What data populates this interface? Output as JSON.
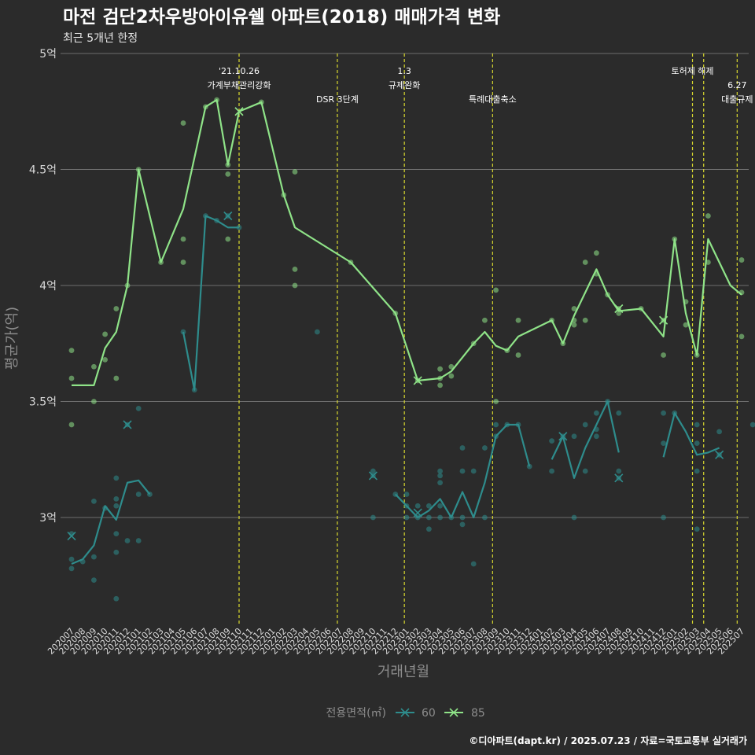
{
  "chart_data": {
    "type": "line",
    "title": "마전 검단2차우방아이유쉘 아파트(2018) 매매가격 변화",
    "subtitle": "최근 5개년 한정",
    "xlabel": "거래년월",
    "ylabel": "평균가(억)",
    "caption": "©디아파트(dapt.kr) / 2025.07.23 / 자료=국토교통부 실거래가",
    "legend": {
      "title": "전용면적(㎡)",
      "position": "bottom"
    },
    "ylim": [
      2.55,
      5.0
    ],
    "y_ticks": [
      {
        "value": 3.0,
        "label": "3억"
      },
      {
        "value": 3.5,
        "label": "3.5억"
      },
      {
        "value": 4.0,
        "label": "4억"
      },
      {
        "value": 4.5,
        "label": "4.5억"
      },
      {
        "value": 5.0,
        "label": "5억"
      }
    ],
    "months": [
      "202007",
      "202008",
      "202009",
      "202010",
      "202011",
      "202012",
      "202101",
      "202102",
      "202103",
      "202104",
      "202105",
      "202106",
      "202107",
      "202108",
      "202109",
      "202110",
      "202111",
      "202112",
      "202201",
      "202202",
      "202203",
      "202204",
      "202205",
      "202206",
      "202207",
      "202208",
      "202209",
      "202210",
      "202211",
      "202212",
      "202301",
      "202302",
      "202303",
      "202304",
      "202305",
      "202306",
      "202307",
      "202308",
      "202309",
      "202310",
      "202311",
      "202312",
      "202401",
      "202402",
      "202403",
      "202404",
      "202405",
      "202406",
      "202407",
      "202408",
      "202409",
      "202410",
      "202411",
      "202412",
      "202501",
      "202502",
      "202503",
      "202504",
      "202505",
      "202506",
      "202507"
    ],
    "events": [
      {
        "month_index": 15.0,
        "lines": [
          "'21.10.26",
          "가계부채관리강화"
        ]
      },
      {
        "month_index": 23.8,
        "lines": [
          "",
          "",
          "DSR 3단계"
        ]
      },
      {
        "month_index": 29.8,
        "lines": [
          "1.3",
          "규제완화"
        ]
      },
      {
        "month_index": 37.7,
        "lines": [
          "",
          "",
          "특례대출축소"
        ]
      },
      {
        "month_index": 55.6,
        "lines": [
          "토허제 해제"
        ]
      },
      {
        "month_index": 56.6,
        "lines": []
      },
      {
        "month_index": 59.6,
        "lines": [
          "",
          "6.27",
          "대출규제"
        ]
      }
    ],
    "series": [
      {
        "name": "60",
        "color": "#2e8c8c",
        "line": [
          [
            0,
            2.8
          ],
          [
            1,
            2.82
          ],
          [
            2,
            2.88
          ],
          [
            3,
            3.05
          ],
          [
            4,
            2.99
          ],
          [
            5,
            3.15
          ],
          [
            6,
            3.16
          ],
          [
            7,
            3.1
          ],
          null,
          [
            10,
            3.8
          ],
          [
            11,
            3.55
          ],
          [
            12,
            4.3
          ],
          [
            13,
            4.28
          ],
          [
            14,
            4.25
          ],
          [
            15,
            4.25
          ],
          null,
          [
            29,
            3.1
          ],
          [
            30,
            3.05
          ],
          [
            31,
            3.0
          ],
          [
            32,
            3.03
          ],
          [
            33,
            3.08
          ],
          [
            34,
            3.0
          ],
          [
            35,
            3.11
          ],
          [
            36,
            3.0
          ],
          [
            37,
            3.15
          ],
          [
            38,
            3.35
          ],
          [
            39,
            3.4
          ],
          [
            40,
            3.4
          ],
          [
            41,
            3.22
          ],
          null,
          [
            43,
            3.25
          ],
          [
            44,
            3.35
          ],
          [
            45,
            3.17
          ],
          [
            46,
            3.3
          ],
          [
            47,
            3.4
          ],
          [
            48,
            3.5
          ],
          [
            49,
            3.28
          ],
          null,
          [
            53,
            3.26
          ],
          [
            54,
            3.45
          ],
          [
            55,
            3.37
          ],
          [
            56,
            3.27
          ],
          [
            57,
            3.28
          ],
          [
            58,
            3.3
          ]
        ],
        "points": [
          [
            0,
            2.78
          ],
          [
            0,
            2.82
          ],
          [
            0,
            2.93
          ],
          [
            1,
            2.81
          ],
          [
            2,
            2.73
          ],
          [
            2,
            2.83
          ],
          [
            2,
            3.07
          ],
          [
            3,
            3.04
          ],
          [
            4,
            2.65
          ],
          [
            4,
            2.85
          ],
          [
            4,
            2.93
          ],
          [
            4,
            3.05
          ],
          [
            4,
            3.08
          ],
          [
            4,
            3.17
          ],
          [
            5,
            2.9
          ],
          [
            5,
            3.4
          ],
          [
            6,
            2.9
          ],
          [
            6,
            3.1
          ],
          [
            6,
            3.47
          ],
          [
            7,
            3.1
          ],
          [
            10,
            3.8
          ],
          [
            11,
            3.55
          ],
          [
            12,
            4.3
          ],
          [
            13,
            4.28
          ],
          [
            14,
            4.3
          ],
          [
            15,
            4.25
          ],
          [
            22,
            3.8
          ],
          [
            27,
            3.0
          ],
          [
            27,
            3.18
          ],
          [
            27,
            3.2
          ],
          [
            29,
            3.1
          ],
          [
            30,
            3.0
          ],
          [
            30,
            3.05
          ],
          [
            30,
            3.1
          ],
          [
            31,
            3.0
          ],
          [
            31,
            3.05
          ],
          [
            32,
            2.95
          ],
          [
            32,
            3.0
          ],
          [
            32,
            3.05
          ],
          [
            33,
            3.0
          ],
          [
            33,
            3.05
          ],
          [
            33,
            3.15
          ],
          [
            33,
            3.18
          ],
          [
            33,
            3.2
          ],
          [
            34,
            3.0
          ],
          [
            35,
            2.97
          ],
          [
            35,
            3.0
          ],
          [
            35,
            3.2
          ],
          [
            35,
            3.3
          ],
          [
            36,
            2.8
          ],
          [
            36,
            3.2
          ],
          [
            37,
            3.0
          ],
          [
            37,
            3.3
          ],
          [
            38,
            3.35
          ],
          [
            38,
            3.4
          ],
          [
            39,
            3.4
          ],
          [
            40,
            3.4
          ],
          [
            41,
            3.22
          ],
          [
            43,
            3.2
          ],
          [
            43,
            3.33
          ],
          [
            44,
            3.35
          ],
          [
            45,
            3.0
          ],
          [
            45,
            3.35
          ],
          [
            46,
            3.2
          ],
          [
            46,
            3.4
          ],
          [
            47,
            3.35
          ],
          [
            47,
            3.38
          ],
          [
            47,
            3.45
          ],
          [
            48,
            3.5
          ],
          [
            49,
            3.17
          ],
          [
            49,
            3.2
          ],
          [
            49,
            3.45
          ],
          [
            53,
            3.0
          ],
          [
            53,
            3.32
          ],
          [
            53,
            3.45
          ],
          [
            54,
            3.45
          ],
          [
            56,
            2.95
          ],
          [
            56,
            3.2
          ],
          [
            56,
            3.32
          ],
          [
            56,
            3.4
          ],
          [
            58,
            3.27
          ],
          [
            58,
            3.37
          ],
          [
            61,
            3.4
          ]
        ],
        "markers": [
          [
            0,
            2.92
          ],
          [
            5,
            3.4
          ],
          [
            14,
            4.3
          ],
          [
            27,
            3.18
          ],
          [
            31,
            3.02
          ],
          [
            44,
            3.35
          ],
          [
            49,
            3.17
          ],
          [
            58,
            3.27
          ]
        ]
      },
      {
        "name": "85",
        "color": "#8fe388",
        "line": [
          [
            0,
            3.57
          ],
          [
            1,
            3.57
          ],
          [
            2,
            3.57
          ],
          [
            3,
            3.73
          ],
          [
            4,
            3.8
          ],
          [
            5,
            4.0
          ],
          [
            6,
            4.5
          ],
          [
            8,
            4.1
          ],
          [
            10,
            4.33
          ],
          [
            12,
            4.77
          ],
          [
            13,
            4.8
          ],
          [
            14,
            4.52
          ],
          [
            15,
            4.75
          ],
          [
            17,
            4.79
          ],
          [
            19,
            4.39
          ],
          [
            20,
            4.25
          ],
          [
            25,
            4.1
          ],
          [
            29,
            3.88
          ],
          [
            31,
            3.59
          ],
          [
            33,
            3.6
          ],
          [
            34,
            3.63
          ],
          [
            36,
            3.75
          ],
          [
            37,
            3.8
          ],
          [
            38,
            3.74
          ],
          [
            39,
            3.72
          ],
          [
            40,
            3.78
          ],
          [
            43,
            3.85
          ],
          [
            44,
            3.75
          ],
          [
            45,
            3.87
          ],
          [
            47,
            4.07
          ],
          [
            48,
            3.96
          ],
          [
            49,
            3.89
          ],
          [
            51,
            3.9
          ],
          [
            53,
            3.78
          ],
          [
            54,
            4.2
          ],
          [
            55,
            3.88
          ],
          [
            56,
            3.7
          ],
          [
            57,
            4.2
          ],
          [
            58,
            4.1
          ],
          [
            59,
            4.0
          ],
          [
            60,
            3.96
          ]
        ],
        "points": [
          [
            0,
            3.4
          ],
          [
            0,
            3.6
          ],
          [
            0,
            3.72
          ],
          [
            2,
            3.5
          ],
          [
            2,
            3.65
          ],
          [
            3,
            3.68
          ],
          [
            3,
            3.79
          ],
          [
            4,
            3.6
          ],
          [
            4,
            3.9
          ],
          [
            5,
            4.0
          ],
          [
            6,
            4.5
          ],
          [
            8,
            4.1
          ],
          [
            10,
            4.1
          ],
          [
            10,
            4.2
          ],
          [
            10,
            4.7
          ],
          [
            12,
            4.77
          ],
          [
            13,
            4.8
          ],
          [
            14,
            4.2
          ],
          [
            14,
            4.48
          ],
          [
            14,
            4.52
          ],
          [
            17,
            4.79
          ],
          [
            19,
            4.39
          ],
          [
            20,
            4.0
          ],
          [
            20,
            4.07
          ],
          [
            20,
            4.49
          ],
          [
            25,
            4.1
          ],
          [
            29,
            3.88
          ],
          [
            31,
            3.59
          ],
          [
            33,
            3.57
          ],
          [
            33,
            3.6
          ],
          [
            33,
            3.64
          ],
          [
            34,
            3.61
          ],
          [
            34,
            3.65
          ],
          [
            36,
            3.75
          ],
          [
            37,
            3.85
          ],
          [
            38,
            3.5
          ],
          [
            38,
            3.98
          ],
          [
            39,
            3.72
          ],
          [
            40,
            3.7
          ],
          [
            40,
            3.85
          ],
          [
            43,
            3.85
          ],
          [
            44,
            3.75
          ],
          [
            45,
            3.83
          ],
          [
            45,
            3.85
          ],
          [
            45,
            3.9
          ],
          [
            46,
            3.85
          ],
          [
            46,
            4.1
          ],
          [
            47,
            4.05
          ],
          [
            47,
            4.14
          ],
          [
            48,
            3.96
          ],
          [
            49,
            3.88
          ],
          [
            49,
            3.9
          ],
          [
            51,
            3.9
          ],
          [
            53,
            3.7
          ],
          [
            53,
            3.85
          ],
          [
            54,
            4.2
          ],
          [
            55,
            3.83
          ],
          [
            55,
            3.93
          ],
          [
            56,
            3.7
          ],
          [
            57,
            4.1
          ],
          [
            57,
            4.3
          ],
          [
            60,
            3.78
          ],
          [
            60,
            3.97
          ],
          [
            60,
            4.11
          ]
        ],
        "markers": [
          [
            15,
            4.75
          ],
          [
            31,
            3.59
          ],
          [
            49,
            3.9
          ],
          [
            53,
            3.85
          ]
        ]
      }
    ]
  }
}
